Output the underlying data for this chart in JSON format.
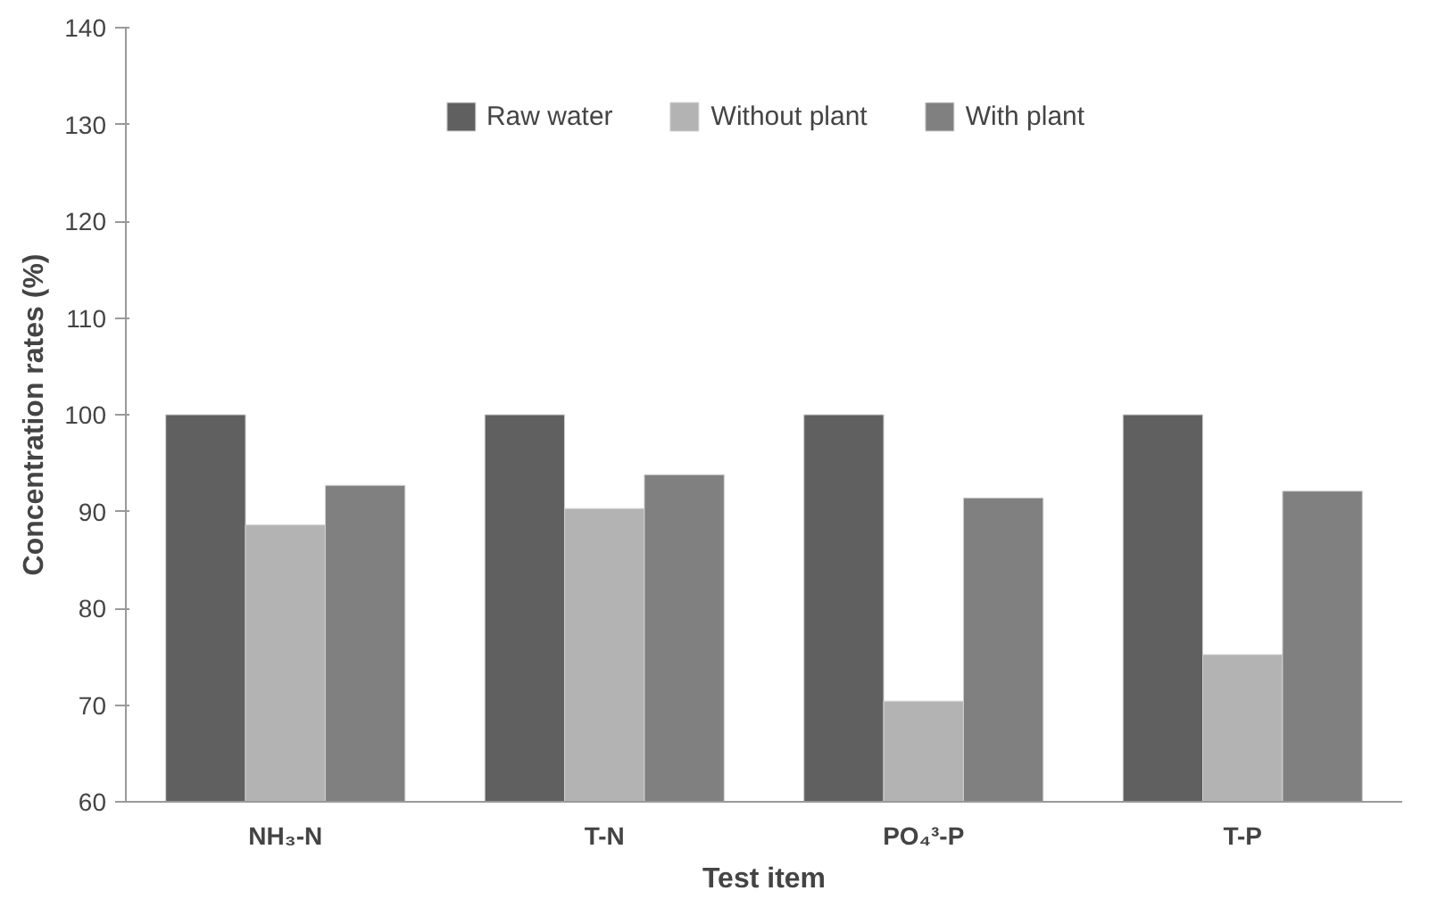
{
  "chart_data": {
    "type": "bar",
    "xlabel": "Test item",
    "ylabel": "Concentration rates (%)",
    "categories": [
      "NH₃-N",
      "T-N",
      "PO₄³-P",
      "T-P"
    ],
    "series": [
      {
        "name": "Raw water",
        "color": "#606060",
        "values": [
          100,
          100,
          100,
          100
        ]
      },
      {
        "name": "Without plant",
        "color": "#b3b3b3",
        "values": [
          88.6,
          90.3,
          70.4,
          75.2
        ]
      },
      {
        "name": "With plant",
        "color": "#808080",
        "values": [
          92.7,
          93.8,
          91.4,
          92.1
        ]
      }
    ],
    "ylim": [
      60,
      140
    ],
    "yticks": [
      60,
      70,
      80,
      90,
      100,
      110,
      120,
      130,
      140
    ],
    "grid": false,
    "legend": "top"
  }
}
